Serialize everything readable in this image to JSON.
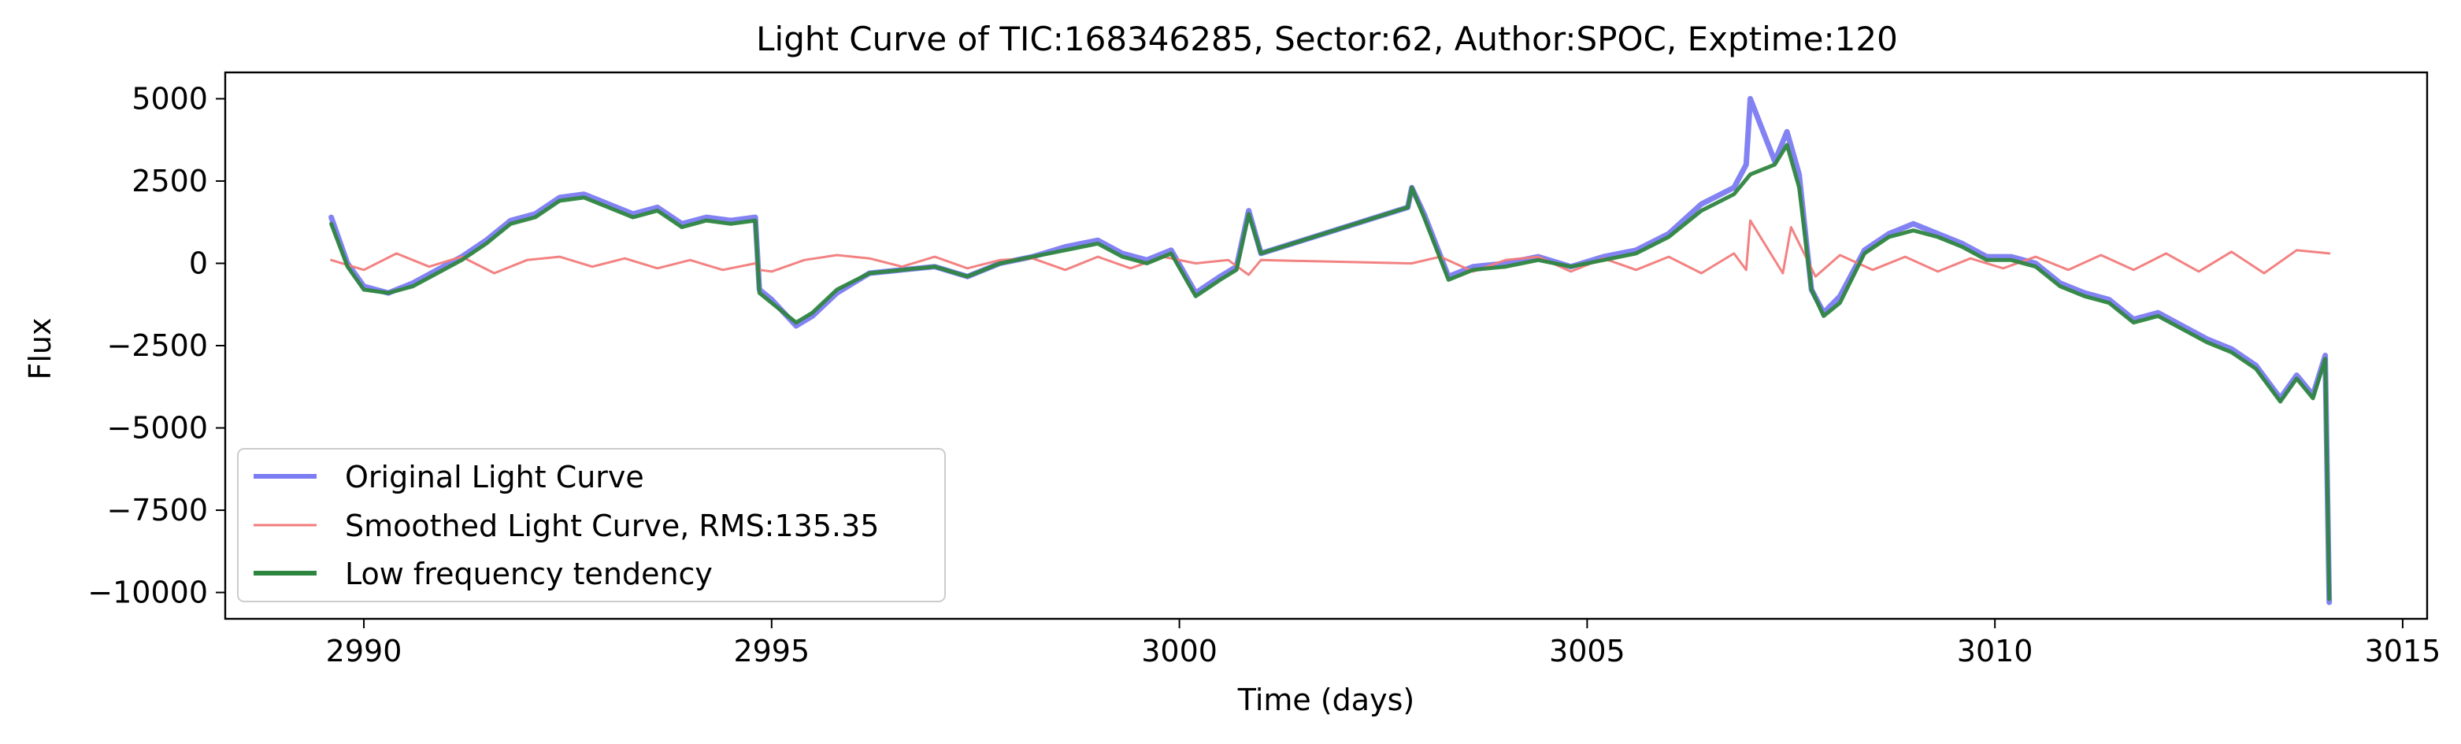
{
  "chart_data": {
    "type": "line",
    "title": "Light Curve of TIC:168346285, Sector:62, Author:SPOC, Exptime:120",
    "xlabel": "Time (days)",
    "ylabel": "Flux",
    "xlim": [
      2988.3,
      3015.3
    ],
    "ylim": [
      -10800,
      5800
    ],
    "x_ticks": [
      2990,
      2995,
      3000,
      3005,
      3010,
      3015
    ],
    "y_ticks": [
      5000,
      2500,
      0,
      -2500,
      -5000,
      -7500,
      -10000
    ],
    "x_tick_labels": [
      "2990",
      "2995",
      "3000",
      "3005",
      "3010",
      "3015"
    ],
    "y_tick_labels": [
      "5000",
      "2500",
      "0",
      "−2500",
      "−5000",
      "−7500",
      "−10000"
    ],
    "grid": false,
    "legend_position": "lower-left",
    "series": [
      {
        "name": "Original Light Curve",
        "color": "#7b7bf2",
        "x": [
          2989.6,
          2989.8,
          2990.0,
          2990.3,
          2990.6,
          2990.9,
          2991.2,
          2991.5,
          2991.8,
          2992.1,
          2992.4,
          2992.7,
          2993.0,
          2993.3,
          2993.6,
          2993.9,
          2994.2,
          2994.5,
          2994.8,
          2994.85,
          2995.0,
          2995.3,
          2995.5,
          2995.8,
          2996.2,
          2996.6,
          2997.0,
          2997.4,
          2997.8,
          2998.2,
          2998.6,
          2999.0,
          2999.3,
          2999.6,
          2999.9,
          3000.2,
          3000.5,
          3000.7,
          3000.85,
          3001.0,
          3002.8,
          3002.85,
          3003.0,
          3003.3,
          3003.6,
          3004.0,
          3004.4,
          3004.8,
          3005.2,
          3005.6,
          3006.0,
          3006.4,
          3006.8,
          3006.95,
          3007.0,
          3007.3,
          3007.45,
          3007.6,
          3007.75,
          3007.9,
          3008.1,
          3008.4,
          3008.7,
          3009.0,
          3009.3,
          3009.6,
          3009.9,
          3010.2,
          3010.5,
          3010.8,
          3011.1,
          3011.4,
          3011.7,
          3012.0,
          3012.3,
          3012.6,
          3012.9,
          3013.2,
          3013.5,
          3013.7,
          3013.9,
          3014.05,
          3014.1
        ],
        "y": [
          1400,
          0,
          -700,
          -900,
          -600,
          -200,
          200,
          700,
          1300,
          1500,
          2000,
          2100,
          1800,
          1500,
          1700,
          1200,
          1400,
          1300,
          1400,
          -800,
          -1100,
          -1900,
          -1600,
          -900,
          -300,
          -200,
          -100,
          -400,
          0,
          200,
          500,
          700,
          300,
          100,
          400,
          -900,
          -400,
          -100,
          1600,
          300,
          1700,
          2300,
          1500,
          -400,
          -100,
          0,
          200,
          -100,
          200,
          400,
          900,
          1800,
          2300,
          3000,
          5000,
          3100,
          4000,
          2700,
          -800,
          -1500,
          -1000,
          400,
          900,
          1200,
          900,
          600,
          200,
          200,
          0,
          -600,
          -900,
          -1100,
          -1700,
          -1500,
          -1900,
          -2300,
          -2600,
          -3100,
          -4100,
          -3400,
          -4000,
          -2800,
          -10300
        ]
      },
      {
        "name": "Smoothed Light Curve, RMS:135.35",
        "color": "#f27b7b",
        "x": [
          2989.6,
          2990.0,
          2990.4,
          2990.8,
          2991.2,
          2991.6,
          2992.0,
          2992.4,
          2992.8,
          2993.2,
          2993.6,
          2994.0,
          2994.4,
          2994.8,
          2994.85,
          2995.0,
          2995.4,
          2995.8,
          2996.2,
          2996.6,
          2997.0,
          2997.4,
          2997.8,
          2998.2,
          2998.6,
          2999.0,
          2999.4,
          2999.8,
          3000.2,
          3000.6,
          3000.85,
          3001.0,
          3002.8,
          3002.85,
          3003.2,
          3003.6,
          3004.0,
          3004.4,
          3004.8,
          3005.2,
          3005.6,
          3006.0,
          3006.4,
          3006.8,
          3006.95,
          3007.0,
          3007.4,
          3007.5,
          3007.8,
          3008.1,
          3008.5,
          3008.9,
          3009.3,
          3009.7,
          3010.1,
          3010.5,
          3010.9,
          3011.3,
          3011.7,
          3012.1,
          3012.5,
          3012.9,
          3013.3,
          3013.7,
          3014.1
        ],
        "y": [
          100,
          -200,
          300,
          -100,
          200,
          -300,
          100,
          200,
          -100,
          150,
          -150,
          100,
          -200,
          0,
          -200,
          -250,
          100,
          250,
          150,
          -100,
          200,
          -150,
          100,
          150,
          -200,
          200,
          -150,
          200,
          0,
          100,
          -350,
          100,
          0,
          0,
          200,
          -250,
          100,
          200,
          -250,
          150,
          -200,
          200,
          -300,
          300,
          -200,
          1300,
          -300,
          1100,
          -400,
          250,
          -200,
          200,
          -250,
          150,
          -150,
          200,
          -200,
          250,
          -200,
          300,
          -250,
          350,
          -300,
          400,
          300
        ]
      },
      {
        "name": "Low frequency tendency",
        "color": "#2e8540",
        "x": [
          2989.6,
          2989.8,
          2990.0,
          2990.3,
          2990.6,
          2990.9,
          2991.2,
          2991.5,
          2991.8,
          2992.1,
          2992.4,
          2992.7,
          2993.0,
          2993.3,
          2993.6,
          2993.9,
          2994.2,
          2994.5,
          2994.8,
          2994.85,
          2995.0,
          2995.3,
          2995.5,
          2995.8,
          2996.2,
          2996.6,
          2997.0,
          2997.4,
          2997.8,
          2998.2,
          2998.6,
          2999.0,
          2999.3,
          2999.6,
          2999.9,
          3000.2,
          3000.5,
          3000.7,
          3000.85,
          3001.0,
          3002.8,
          3002.85,
          3003.0,
          3003.3,
          3003.6,
          3004.0,
          3004.4,
          3004.8,
          3005.2,
          3005.6,
          3006.0,
          3006.4,
          3006.8,
          3007.0,
          3007.3,
          3007.45,
          3007.6,
          3007.75,
          3007.9,
          3008.1,
          3008.4,
          3008.7,
          3009.0,
          3009.3,
          3009.6,
          3009.9,
          3010.2,
          3010.5,
          3010.8,
          3011.1,
          3011.4,
          3011.7,
          3012.0,
          3012.3,
          3012.6,
          3012.9,
          3013.2,
          3013.5,
          3013.7,
          3013.9,
          3014.05,
          3014.1
        ],
        "y": [
          1200,
          -100,
          -800,
          -900,
          -700,
          -300,
          100,
          600,
          1200,
          1400,
          1900,
          2000,
          1700,
          1400,
          1600,
          1100,
          1300,
          1200,
          1300,
          -900,
          -1200,
          -1800,
          -1500,
          -800,
          -300,
          -200,
          -100,
          -400,
          0,
          200,
          400,
          600,
          200,
          0,
          300,
          -1000,
          -500,
          -200,
          1500,
          300,
          1700,
          2300,
          1400,
          -500,
          -200,
          -100,
          100,
          -100,
          100,
          300,
          800,
          1600,
          2100,
          2700,
          3000,
          3600,
          2300,
          -800,
          -1600,
          -1200,
          300,
          800,
          1000,
          800,
          500,
          100,
          100,
          -100,
          -700,
          -1000,
          -1200,
          -1800,
          -1600,
          -2000,
          -2400,
          -2700,
          -3200,
          -4200,
          -3500,
          -4100,
          -2900,
          -10200
        ]
      }
    ]
  }
}
